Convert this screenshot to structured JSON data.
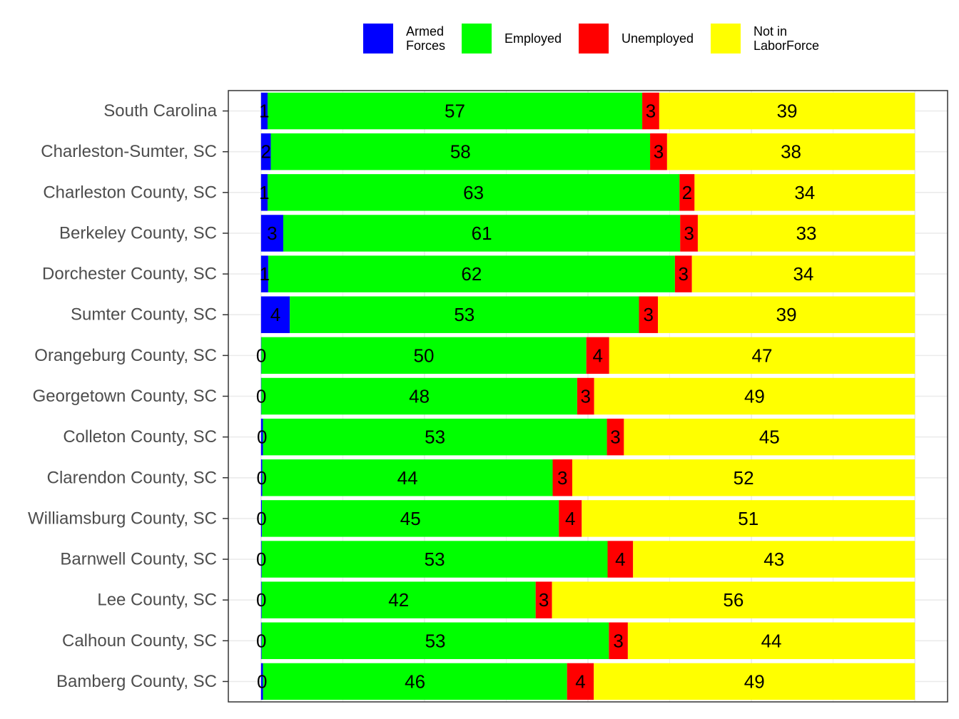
{
  "chart_data": {
    "type": "bar",
    "orientation": "horizontal",
    "stacked": true,
    "normalized_percent": true,
    "categories": [
      "South Carolina",
      "Charleston-Sumter, SC",
      "Charleston County, SC",
      "Berkeley County, SC",
      "Dorchester County, SC",
      "Sumter County, SC",
      "Orangeburg County, SC",
      "Georgetown County, SC",
      "Colleton County, SC",
      "Clarendon County, SC",
      "Williamsburg County, SC",
      "Barnwell County, SC",
      "Lee County, SC",
      "Calhoun County, SC",
      "Bamberg County, SC"
    ],
    "series": [
      {
        "name": "Armed Forces",
        "color": "#0000ff",
        "values": [
          1,
          1.5,
          1,
          3.4,
          1.1,
          4.4,
          0.05,
          0.05,
          0.3,
          0.2,
          0.15,
          0.1,
          0.1,
          0.1,
          0.3
        ],
        "labels": [
          "1",
          "2",
          "1",
          "3",
          "1",
          "4",
          "0",
          "0",
          "0",
          "0",
          "0",
          "0",
          "0",
          "0",
          "0"
        ]
      },
      {
        "name": "Employed",
        "color": "#00ff00",
        "values": [
          57.3,
          58,
          63,
          60.7,
          62.2,
          53.4,
          49.7,
          48.3,
          52.6,
          44.4,
          45.4,
          52.9,
          41.9,
          53.1,
          46.5
        ],
        "labels": [
          "57",
          "58",
          "63",
          "61",
          "62",
          "53",
          "50",
          "48",
          "53",
          "44",
          "45",
          "53",
          "42",
          "53",
          "46"
        ]
      },
      {
        "name": "Unemployed",
        "color": "#ff0000",
        "values": [
          2.6,
          2.6,
          2.3,
          2.7,
          2.6,
          2.9,
          3.5,
          2.6,
          2.6,
          3.0,
          3.5,
          3.9,
          2.5,
          2.9,
          4.1
        ],
        "labels": [
          "3",
          "3",
          "2",
          "3",
          "3",
          "3",
          "4",
          "3",
          "3",
          "3",
          "4",
          "4",
          "3",
          "3",
          "4"
        ]
      },
      {
        "name": "Not in\nLaborForce",
        "color": "#ffff00",
        "values": [
          39.1,
          37.9,
          33.7,
          33.2,
          34.1,
          39.3,
          46.75,
          49.05,
          44.5,
          52.4,
          50.95,
          43.1,
          55.5,
          43.9,
          49.1
        ],
        "labels": [
          "39",
          "38",
          "34",
          "33",
          "34",
          "39",
          "47",
          "49",
          "45",
          "52",
          "51",
          "43",
          "56",
          "44",
          "49"
        ]
      }
    ],
    "xlim": [
      -5,
      105
    ],
    "title": "",
    "xlabel": "",
    "ylabel": "",
    "legend": {
      "position": "top",
      "entries": [
        "Armed\nForces",
        "Employed",
        "Unemployed",
        "Not in\nLaborForce"
      ]
    },
    "grid": true
  }
}
